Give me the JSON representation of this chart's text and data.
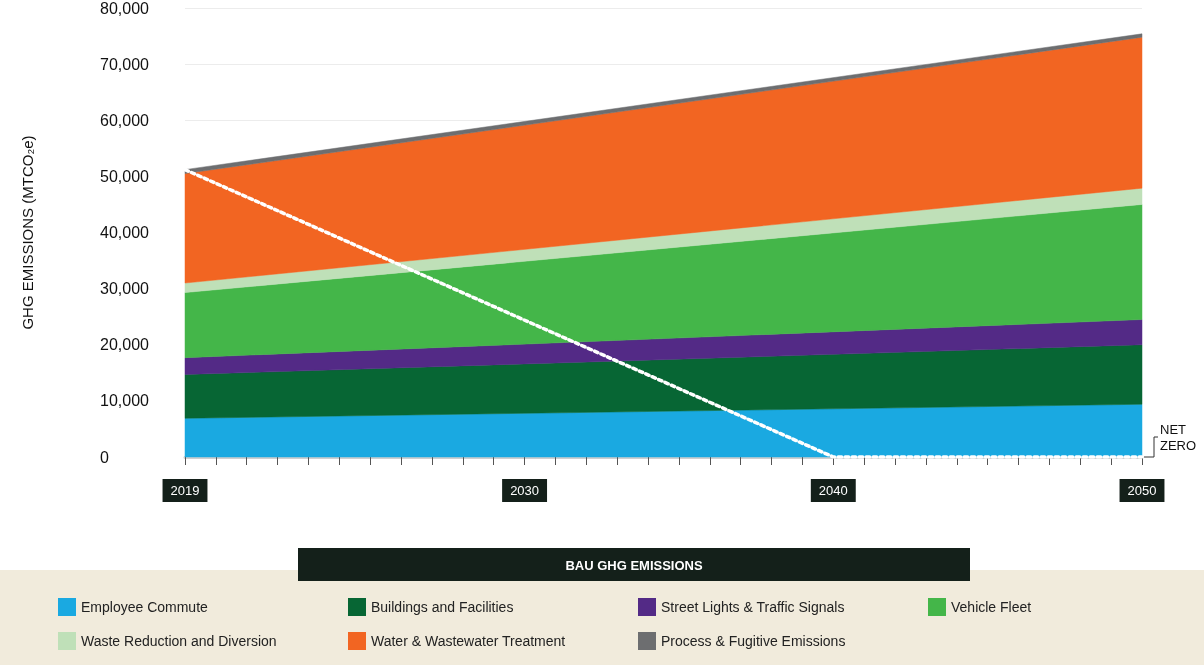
{
  "chart_data": {
    "type": "area",
    "stacked": true,
    "ylabel": "GHG EMISSIONS (MTCO₂e)",
    "legend_title": "BAU GHG EMISSIONS",
    "legend": "bottom",
    "grid": "y",
    "marker": "none",
    "x": [
      2019,
      2050
    ],
    "xlim": [
      2019,
      2050
    ],
    "xticks": [
      2019,
      {
        "value": 2020,
        "label": null
      },
      {
        "value": 2021,
        "label": null
      },
      {
        "value": 2022,
        "label": null
      },
      {
        "value": 2023,
        "label": null
      },
      {
        "value": 2024,
        "label": null
      },
      {
        "value": 2025,
        "label": null
      },
      {
        "value": 2026,
        "label": null
      },
      {
        "value": 2027,
        "label": null
      },
      {
        "value": 2028,
        "label": null
      },
      {
        "value": 2029,
        "label": null
      },
      2030,
      {
        "value": 2031,
        "label": null
      },
      {
        "value": 2032,
        "label": null
      },
      {
        "value": 2033,
        "label": null
      },
      {
        "value": 2034,
        "label": null
      },
      {
        "value": 2035,
        "label": null
      },
      {
        "value": 2036,
        "label": null
      },
      {
        "value": 2037,
        "label": null
      },
      {
        "value": 2038,
        "label": null
      },
      {
        "value": 2039,
        "label": null
      },
      2040,
      {
        "value": 2041,
        "label": null
      },
      {
        "value": 2042,
        "label": null
      },
      {
        "value": 2043,
        "label": null
      },
      {
        "value": 2044,
        "label": null
      },
      {
        "value": 2045,
        "label": null
      },
      {
        "value": 2046,
        "label": null
      },
      {
        "value": 2047,
        "label": null
      },
      {
        "value": 2048,
        "label": null
      },
      {
        "value": 2049,
        "label": null
      },
      2050
    ],
    "ylim": [
      0,
      80000
    ],
    "yticks": [
      0,
      {
        "value": 10000,
        "label": "10,000"
      },
      {
        "value": 20000,
        "label": "20,000"
      },
      {
        "value": 30000,
        "label": "30,000"
      },
      {
        "value": 40000,
        "label": "40,000"
      },
      {
        "value": 50000,
        "label": "50,000"
      },
      {
        "value": 60000,
        "label": "60,000"
      },
      {
        "value": 70000,
        "label": "70,000"
      },
      {
        "value": 80000,
        "label": "80,000"
      }
    ],
    "series": [
      {
        "name": "Employee Commute",
        "color": "#1aa9e1",
        "values": [
          6900,
          9400
        ]
      },
      {
        "name": "Buildings and Facilities",
        "color": "#076634",
        "values": [
          7800,
          10600
        ]
      },
      {
        "name": "Street Lights & Traffic Signals",
        "color": "#532a86",
        "values": [
          3000,
          4500
        ]
      },
      {
        "name": "Vehicle Fleet",
        "color": "#44b649",
        "values": [
          11600,
          20500
        ]
      },
      {
        "name": "Waste Reduction and Diversion",
        "color": "#bfe0b8",
        "values": [
          1700,
          2900
        ]
      },
      {
        "name": "Water & Wastewater Treatment",
        "color": "#f26522",
        "values": [
          19500,
          26900
        ]
      },
      {
        "name": "Process & Fugitive Emissions",
        "color": "#6d6e70",
        "values": [
          700,
          600
        ]
      },
      {
        "type": "line",
        "color": "#ffffff",
        "line_style": "dotted",
        "x": [
          2019,
          2040,
          2050
        ],
        "values": [
          51200,
          0,
          0
        ]
      }
    ],
    "annotations": [
      {
        "text": "NET\nZERO",
        "x": 2050,
        "y": 0
      }
    ]
  }
}
